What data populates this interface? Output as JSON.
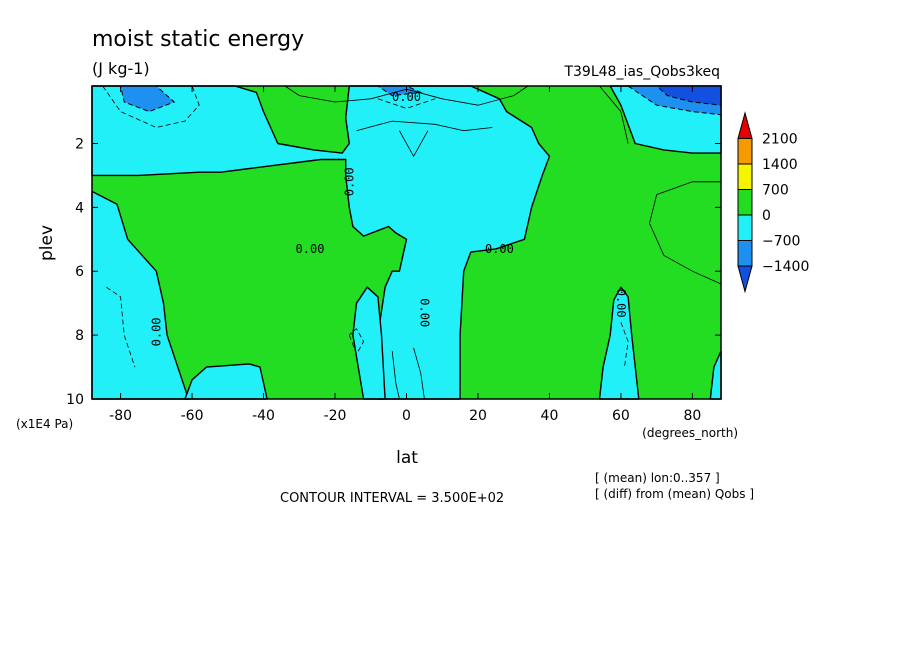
{
  "chart_data": {
    "type": "contour",
    "title": "moist static energy",
    "units": "(J kg-1)",
    "run_label": "T39L48_ias_Qobs3keq",
    "xlabel": "lat",
    "xunits": "(degrees_north)",
    "ylabel": "plev",
    "yunits": "(x1E4 Pa)",
    "xlim": [
      -88,
      88
    ],
    "ylim": [
      0.2,
      10
    ],
    "x_ticks": [
      -80,
      -60,
      -40,
      -20,
      0,
      20,
      40,
      60,
      80
    ],
    "x_tick_labels": [
      "-80",
      "-60",
      "-40",
      "-20",
      "0",
      "20",
      "40",
      "60",
      "80"
    ],
    "y_ticks": [
      2,
      4,
      6,
      8,
      10
    ],
    "y_tick_labels": [
      "2",
      "4",
      "6",
      "8",
      "10"
    ],
    "contour_interval_text": "CONTOUR INTERVAL = 3.500E+02",
    "contour_labels": [
      "0.00",
      "0.00",
      "0.00",
      "0.00",
      "0.00",
      "0.00",
      "0.00"
    ],
    "notes": [
      "[ (mean) lon:0..357 ]",
      "[ (diff) from (mean) Qobs ]"
    ],
    "colorbar": {
      "levels": [
        2100,
        1400,
        700,
        0,
        -700,
        -1400
      ],
      "level_labels": [
        "2100",
        "1400",
        "700",
        "0",
        "−700",
        "−1400"
      ],
      "colors": [
        "#e60000",
        "#f59a00",
        "#f5f500",
        "#22dd22",
        "#22f0f8",
        "#1e90f0",
        "#1450e0"
      ],
      "extend": "both"
    },
    "fill_colors": {
      "positive": "#22dd22",
      "negative": "#22f0f8",
      "strong_negative": "#1e90f0",
      "very_strong_negative": "#1450e0"
    },
    "regions": {
      "negative_polygons": [
        [
          [
            -88,
            0.2
          ],
          [
            -63,
            0.2
          ],
          [
            -48,
            0.2
          ],
          [
            -42,
            0.4
          ],
          [
            -40,
            1.0
          ],
          [
            -36,
            2.0
          ],
          [
            -26,
            2.2
          ],
          [
            -18,
            2.3
          ],
          [
            -16,
            2.0
          ],
          [
            -17,
            1.2
          ],
          [
            -16,
            0.2
          ],
          [
            18,
            0.2
          ],
          [
            26,
            0.6
          ],
          [
            28,
            1.0
          ],
          [
            35,
            1.5
          ],
          [
            37,
            2.0
          ],
          [
            40,
            2.4
          ],
          [
            38,
            3.0
          ],
          [
            35,
            4.0
          ],
          [
            33,
            5.0
          ],
          [
            25,
            5.3
          ],
          [
            18,
            5.4
          ],
          [
            16,
            6.0
          ],
          [
            15,
            8.0
          ],
          [
            15,
            10.0
          ],
          [
            -8,
            10.0
          ],
          [
            -8,
            8.0
          ],
          [
            -6,
            6.5
          ],
          [
            -4,
            6.0
          ],
          [
            -2,
            6.0
          ],
          [
            0,
            5.0
          ],
          [
            -3,
            4.8
          ],
          [
            -5,
            4.6
          ],
          [
            -12,
            4.9
          ],
          [
            -15,
            4.6
          ],
          [
            -16,
            4.0
          ],
          [
            -17,
            3.0
          ],
          [
            -17,
            2.5
          ],
          [
            -24,
            2.5
          ],
          [
            -38,
            2.7
          ],
          [
            -45,
            2.8
          ],
          [
            -52,
            2.9
          ],
          [
            -58,
            2.9
          ],
          [
            -75,
            3.0
          ],
          [
            -88,
            3.0
          ]
        ],
        [
          [
            -88,
            3.5
          ],
          [
            -81,
            3.9
          ],
          [
            -78,
            5.0
          ],
          [
            -70,
            6.0
          ],
          [
            -68,
            7.0
          ],
          [
            -67,
            8.0
          ],
          [
            -61,
            10.0
          ],
          [
            -88,
            10.0
          ]
        ],
        [
          [
            -62,
            10.0
          ],
          [
            -60,
            9.4
          ],
          [
            -56,
            9.0
          ],
          [
            -44,
            8.9
          ],
          [
            -41,
            9.0
          ],
          [
            -39,
            10.0
          ]
        ],
        [
          [
            -12,
            10.0
          ],
          [
            -15,
            8.0
          ],
          [
            -14,
            7.0
          ],
          [
            -11,
            6.5
          ],
          [
            -8,
            6.8
          ],
          [
            -7,
            8.0
          ],
          [
            -6,
            10.0
          ]
        ],
        [
          [
            54,
            10.0
          ],
          [
            55,
            9.0
          ],
          [
            57,
            8.0
          ],
          [
            58,
            6.9
          ],
          [
            60,
            6.5
          ],
          [
            62,
            6.8
          ],
          [
            63,
            8.0
          ],
          [
            65,
            10.0
          ]
        ],
        [
          [
            88,
            2.3
          ],
          [
            80,
            2.3
          ],
          [
            72,
            2.2
          ],
          [
            64,
            2.0
          ],
          [
            60,
            0.8
          ],
          [
            57,
            0.2
          ],
          [
            88,
            0.2
          ]
        ],
        [
          [
            88,
            8.5
          ],
          [
            86,
            9.0
          ],
          [
            85,
            10.0
          ],
          [
            88,
            10.0
          ]
        ]
      ],
      "strong_negative_polygons": [
        [
          [
            -80,
            0.2
          ],
          [
            -70,
            0.2
          ],
          [
            -65,
            0.7
          ],
          [
            -72,
            1.0
          ],
          [
            -79,
            0.7
          ]
        ],
        [
          [
            62,
            0.2
          ],
          [
            88,
            0.2
          ],
          [
            88,
            1.1
          ],
          [
            80,
            1.0
          ],
          [
            70,
            0.8
          ],
          [
            66,
            0.5
          ]
        ],
        [
          [
            -8,
            0.2
          ],
          [
            0,
            0.2
          ],
          [
            4,
            0.4
          ],
          [
            -4,
            0.5
          ]
        ]
      ],
      "very_strong_negative_polygons": [
        [
          [
            70,
            0.2
          ],
          [
            88,
            0.2
          ],
          [
            88,
            0.8
          ],
          [
            80,
            0.7
          ],
          [
            73,
            0.5
          ]
        ]
      ]
    }
  }
}
